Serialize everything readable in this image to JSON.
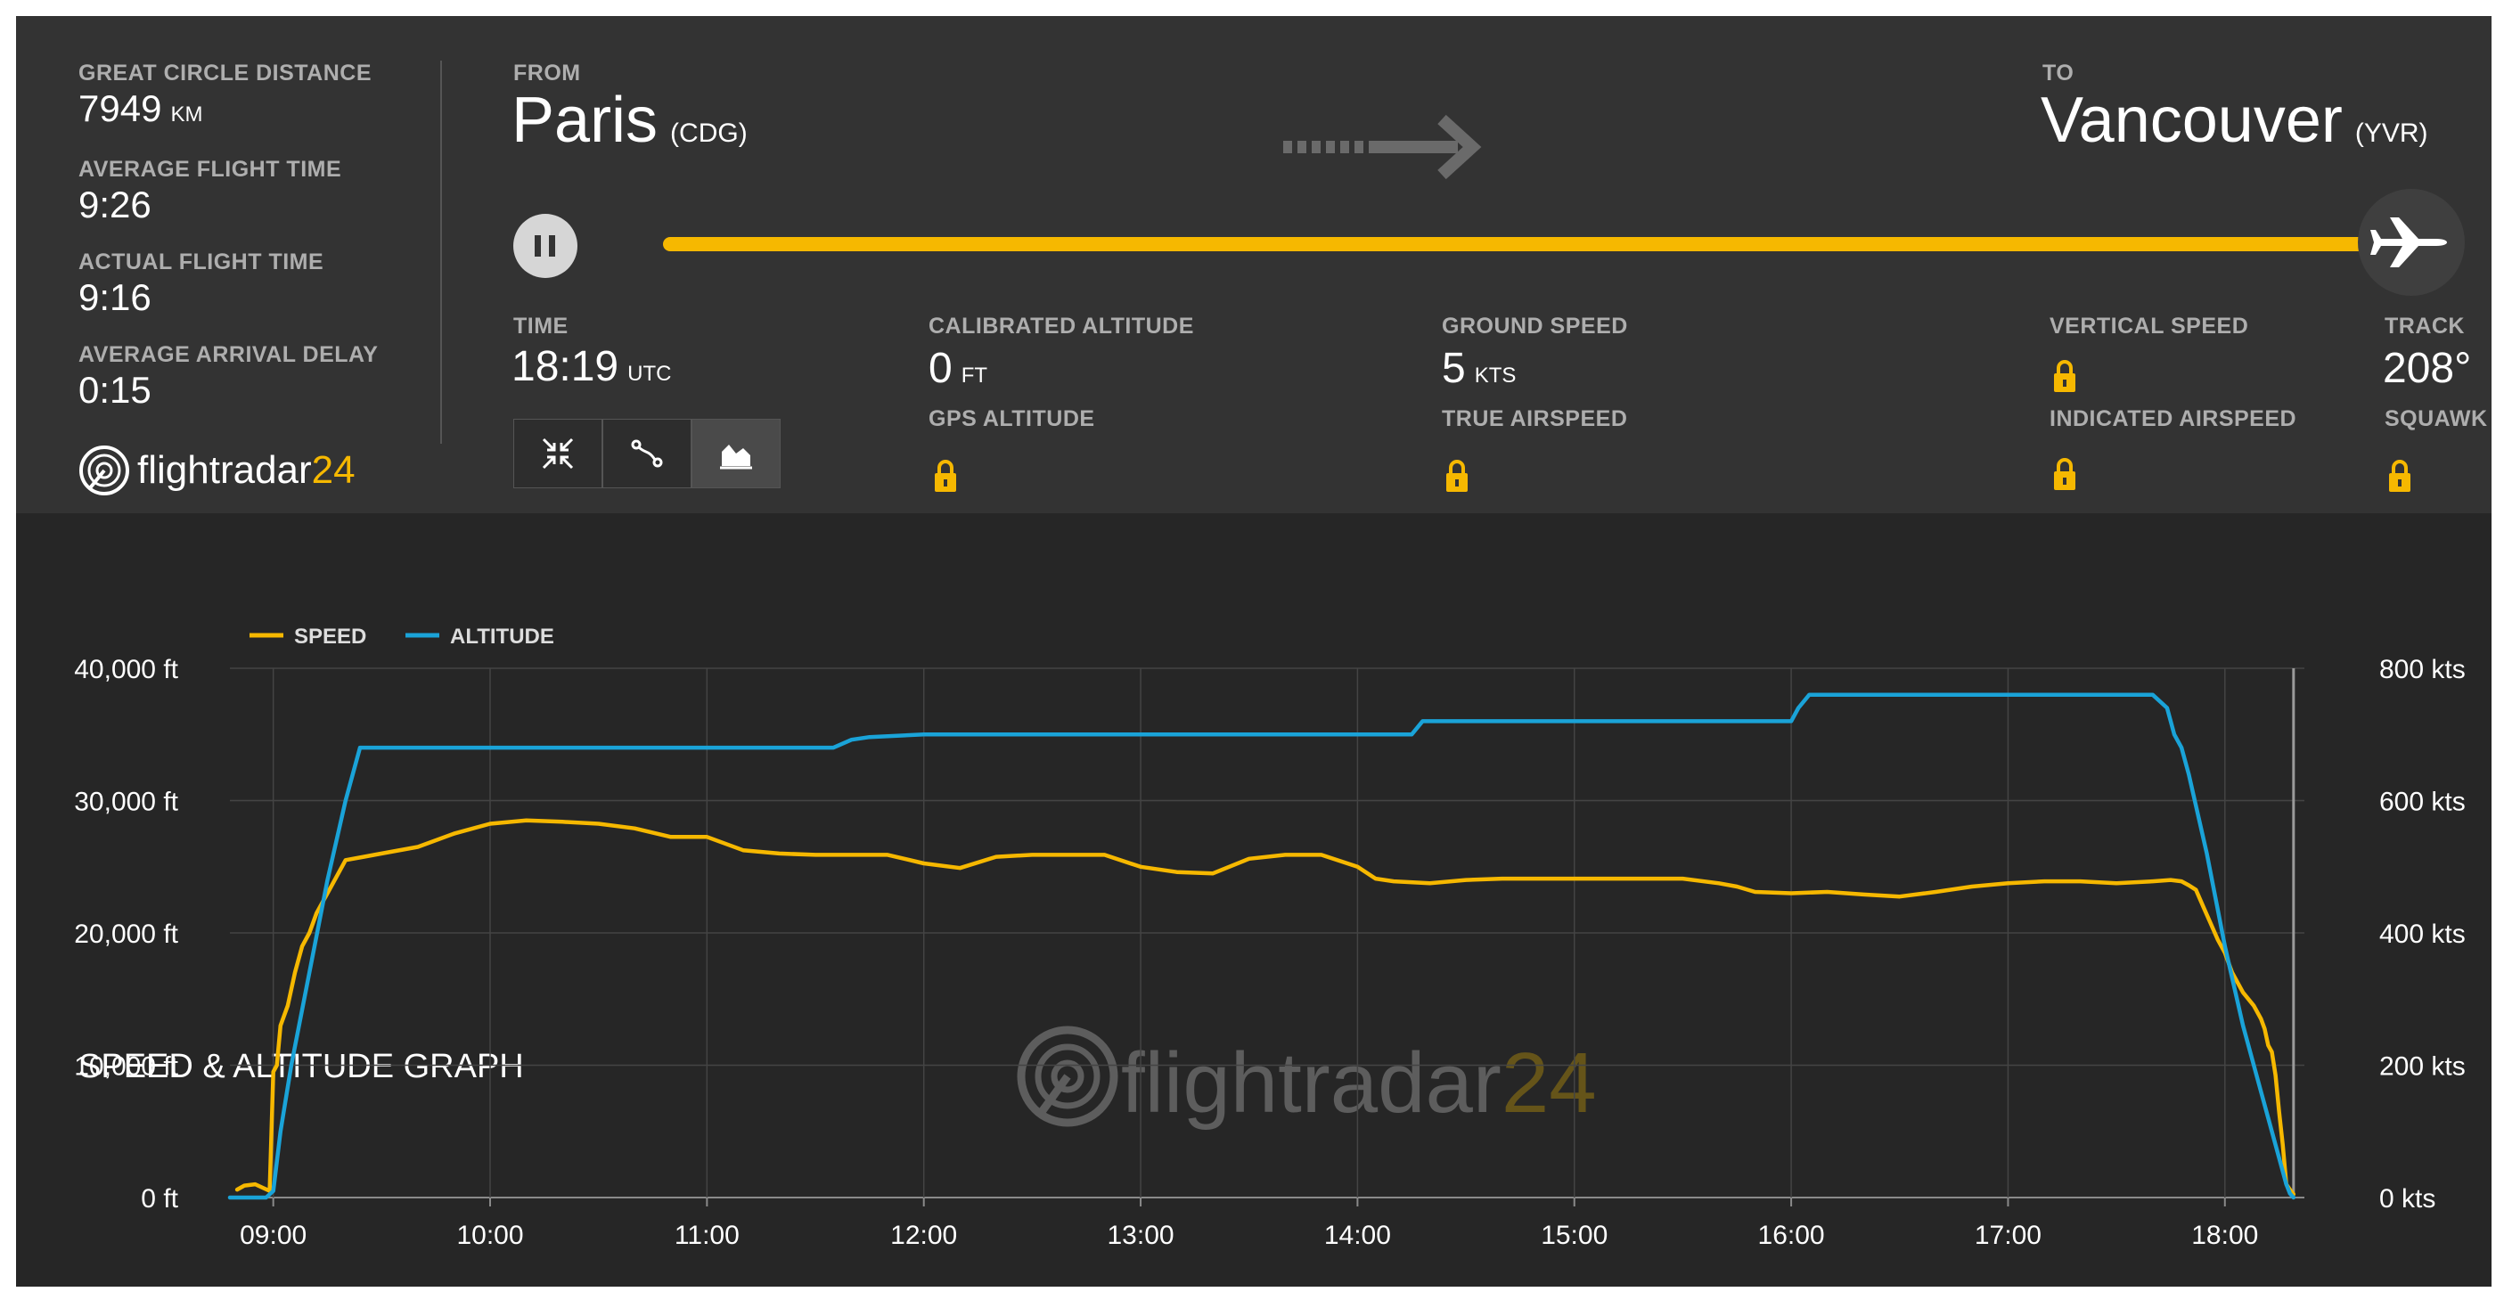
{
  "stats": {
    "gcd_label": "GREAT CIRCLE DISTANCE",
    "gcd_value": "7949",
    "gcd_unit": "KM",
    "avg_time_label": "AVERAGE FLIGHT TIME",
    "avg_time_value": "9:26",
    "actual_time_label": "ACTUAL FLIGHT TIME",
    "actual_time_value": "9:16",
    "delay_label": "AVERAGE ARRIVAL DELAY",
    "delay_value": "0:15"
  },
  "brand": {
    "name": "flightradar",
    "num": "24"
  },
  "route": {
    "from_label": "FROM",
    "from_city": "Paris",
    "from_code": "(CDG)",
    "to_label": "TO",
    "to_city": "Vancouver",
    "to_code": "(YVR)",
    "progress": 1.0
  },
  "telemetry": {
    "time_label": "TIME",
    "time_value": "18:19",
    "time_unit": "UTC",
    "cal_alt_label": "CALIBRATED ALTITUDE",
    "cal_alt_value": "0",
    "cal_alt_unit": "FT",
    "gps_alt_label": "GPS ALTITUDE",
    "ground_speed_label": "GROUND SPEED",
    "ground_speed_value": "5",
    "ground_speed_unit": "KTS",
    "true_airspeed_label": "TRUE AIRSPEED",
    "vertical_speed_label": "VERTICAL SPEED",
    "indicated_airspeed_label": "INDICATED AIRSPEED",
    "track_label": "TRACK",
    "track_value": "208°",
    "squawk_label": "SQUAWK"
  },
  "icons": {
    "pause": "pause-icon",
    "plane": "airplane-icon",
    "arrow": "dotted-arrow-icon",
    "lock": "lock-icon",
    "view_buttons": [
      "collapse-icon",
      "route-icon",
      "chart-icon"
    ]
  },
  "colors": {
    "panel_top": "#333333",
    "panel_graph": "#262626",
    "accent": "#f6b800",
    "altitude": "#1aa3d8",
    "label": "#aeaeae"
  },
  "chart_data": {
    "type": "line",
    "title": "SPEED & ALTITUDE GRAPH",
    "legend": [
      "SPEED",
      "ALTITUDE"
    ],
    "legend_position": "top-left",
    "grid": true,
    "x_ticks": [
      "09:00",
      "10:00",
      "11:00",
      "12:00",
      "13:00",
      "14:00",
      "15:00",
      "16:00",
      "17:00",
      "18:00"
    ],
    "xlim": [
      "08:48",
      "18:22"
    ],
    "y_left_ticks": [
      "0 ft",
      "10,000 ft",
      "20,000 ft",
      "30,000 ft",
      "40,000 ft"
    ],
    "y_left_lim": [
      0,
      40000
    ],
    "y_right_ticks": [
      "0 kts",
      "200 kts",
      "400 kts",
      "600 kts",
      "800 kts"
    ],
    "y_right_lim": [
      0,
      800
    ],
    "current_time": "18:19",
    "series": [
      {
        "name": "SPEED",
        "axis": "right",
        "color": "#f6b800",
        "x": [
          "08:50",
          "08:52",
          "08:55",
          "08:57",
          "08:59",
          "09:00",
          "09:01",
          "09:02",
          "09:04",
          "09:06",
          "09:08",
          "09:10",
          "09:12",
          "09:15",
          "09:20",
          "09:25",
          "09:30",
          "09:40",
          "09:50",
          "10:00",
          "10:10",
          "10:20",
          "10:30",
          "10:40",
          "10:50",
          "11:00",
          "11:10",
          "11:20",
          "11:30",
          "11:40",
          "11:50",
          "12:00",
          "12:10",
          "12:20",
          "12:30",
          "12:40",
          "12:50",
          "13:00",
          "13:10",
          "13:20",
          "13:30",
          "13:40",
          "13:50",
          "14:00",
          "14:05",
          "14:10",
          "14:20",
          "14:30",
          "14:40",
          "15:00",
          "15:20",
          "15:30",
          "15:40",
          "15:45",
          "15:50",
          "16:00",
          "16:10",
          "16:20",
          "16:30",
          "16:40",
          "16:50",
          "17:00",
          "17:10",
          "17:20",
          "17:30",
          "17:40",
          "17:45",
          "17:48",
          "17:50",
          "17:52",
          "17:54",
          "17:56",
          "17:58",
          "18:00",
          "18:02",
          "18:05",
          "18:08",
          "18:10",
          "18:11",
          "18:12",
          "18:13",
          "18:14",
          "18:15",
          "18:16",
          "18:17",
          "18:18",
          "18:19"
        ],
        "values": [
          12,
          18,
          20,
          15,
          10,
          190,
          200,
          260,
          290,
          340,
          380,
          400,
          430,
          460,
          510,
          515,
          520,
          530,
          550,
          565,
          570,
          568,
          565,
          558,
          545,
          545,
          525,
          520,
          518,
          518,
          518,
          505,
          498,
          515,
          518,
          518,
          518,
          500,
          492,
          490,
          512,
          518,
          518,
          500,
          482,
          478,
          475,
          480,
          482,
          482,
          482,
          482,
          475,
          470,
          462,
          460,
          462,
          458,
          455,
          462,
          470,
          475,
          478,
          478,
          475,
          478,
          480,
          478,
          472,
          465,
          440,
          415,
          390,
          370,
          340,
          310,
          290,
          270,
          255,
          230,
          220,
          185,
          130,
          80,
          20,
          12,
          5
        ]
      },
      {
        "name": "ALTITUDE",
        "axis": "left",
        "color": "#1aa3d8",
        "x": [
          "08:48",
          "08:58",
          "09:00",
          "09:02",
          "09:05",
          "09:10",
          "09:15",
          "09:20",
          "09:24",
          "09:30",
          "10:00",
          "11:00",
          "11:35",
          "11:40",
          "11:45",
          "12:00",
          "13:00",
          "14:00",
          "14:15",
          "14:18",
          "14:30",
          "15:00",
          "15:30",
          "16:00",
          "16:02",
          "16:05",
          "16:10",
          "17:00",
          "17:40",
          "17:44",
          "17:46",
          "17:48",
          "17:50",
          "17:55",
          "18:00",
          "18:05",
          "18:10",
          "18:15",
          "18:17",
          "18:18",
          "18:19"
        ],
        "values": [
          0,
          0,
          500,
          5000,
          10000,
          17000,
          24000,
          30000,
          34000,
          34000,
          34000,
          34000,
          34000,
          34600,
          34800,
          35000,
          35000,
          35000,
          35000,
          36000,
          36000,
          36000,
          36000,
          36000,
          37000,
          38000,
          38000,
          38000,
          38000,
          37000,
          35000,
          34000,
          32000,
          26000,
          19000,
          13000,
          8000,
          3000,
          1000,
          300,
          0
        ]
      }
    ]
  }
}
